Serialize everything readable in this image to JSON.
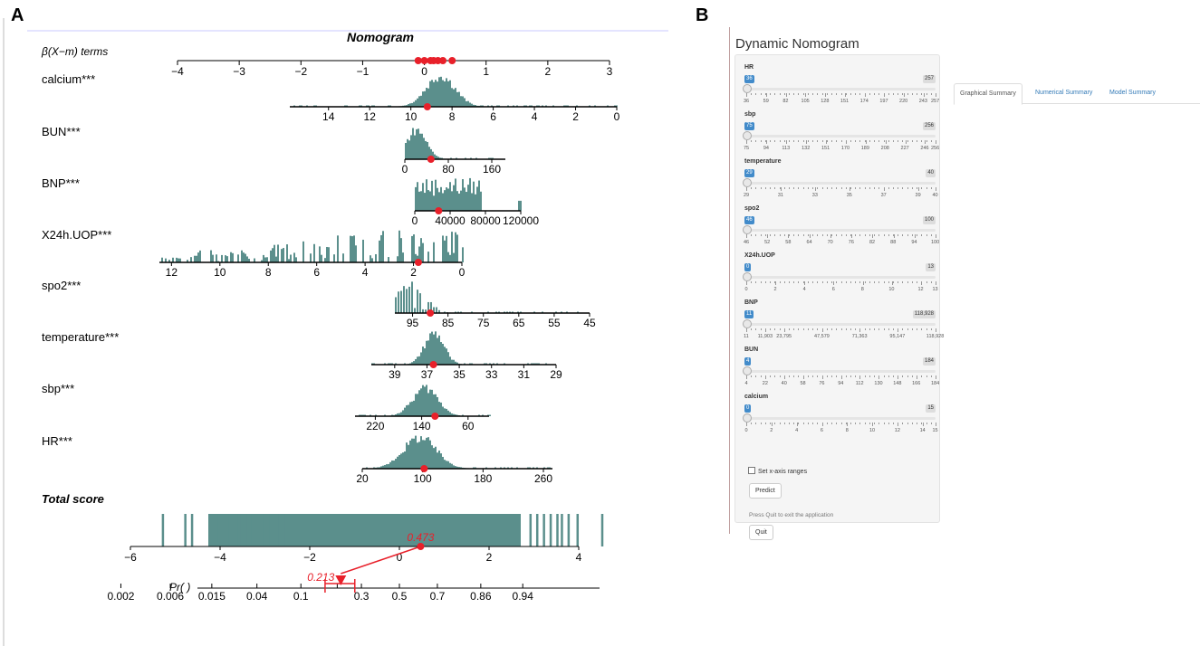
{
  "panel_labels": {
    "a": "A",
    "b": "B"
  },
  "chart_data": {
    "type": "nomogram",
    "title": "Nomogram",
    "beta_axis": {
      "label": "β(X−m) terms",
      "ticks": [
        "−4",
        "−3",
        "−2",
        "−1",
        "0",
        "1",
        "2",
        "3"
      ],
      "min": -4,
      "max": 3,
      "points": [
        -0.1,
        0.0,
        0.1,
        0.15,
        0.22,
        0.3,
        0.45
      ]
    },
    "variables": [
      {
        "name": "calcium***",
        "ticks": [
          "14",
          "12",
          "10",
          "8",
          "6",
          "4",
          "2",
          "0"
        ],
        "range": [
          15,
          0
        ],
        "point": 9.2,
        "hist_center": 8.6,
        "hist_spread": 0.7
      },
      {
        "name": "BUN***",
        "ticks": [
          "0",
          "80",
          "160"
        ],
        "range": [
          0,
          185
        ],
        "point": 48,
        "hist_center": 20,
        "hist_spread": 18
      },
      {
        "name": "BNP***",
        "ticks": [
          "0",
          "40000",
          "80000",
          "120000"
        ],
        "range": [
          0,
          120000
        ],
        "point": 27000,
        "hist_center": 20000,
        "hist_spread": 30000
      },
      {
        "name": "X24h.UOP***",
        "ticks": [
          "12",
          "10",
          "8",
          "6",
          "4",
          "2",
          "0"
        ],
        "range": [
          12.5,
          0
        ],
        "point": 1.8,
        "hist_center": 2.5,
        "hist_spread": 3.5
      },
      {
        "name": "spo2***",
        "ticks": [
          "95",
          "85",
          "75",
          "65",
          "55",
          "45"
        ],
        "range": [
          100,
          45
        ],
        "point": 90,
        "hist_center": 96,
        "hist_spread": 4
      },
      {
        "name": "temperature***",
        "ticks": [
          "39",
          "37",
          "35",
          "33",
          "31",
          "29"
        ],
        "range": [
          40,
          29
        ],
        "point": 36.6,
        "hist_center": 36.6,
        "hist_spread": 0.6
      },
      {
        "name": "sbp***",
        "ticks": [
          "220",
          "140",
          "60"
        ],
        "range": [
          255,
          55
        ],
        "point": 117,
        "hist_center": 135,
        "hist_spread": 22
      },
      {
        "name": "HR***",
        "ticks": [
          "20",
          "100",
          "180",
          "260"
        ],
        "range": [
          20,
          260
        ],
        "point": 102,
        "hist_center": 95,
        "hist_spread": 22
      }
    ],
    "total_score": {
      "label": "Total score",
      "ticks": [
        "−6",
        "−4",
        "−2",
        "0",
        "2",
        "4"
      ],
      "min": -6,
      "max": 4,
      "value": 0.473,
      "value_label": "0.473"
    },
    "probability": {
      "label": "Pr( )",
      "ticks": [
        "0.002",
        "0.006",
        "0.015",
        "0.04",
        "0.1",
        "0.3",
        "0.5",
        "0.7",
        "0.86",
        "0.94"
      ],
      "extra_tick": "0.2",
      "value": 0.213,
      "value_label": "0.213",
      "ci_low": 0.16,
      "ci_high": 0.27
    }
  },
  "app": {
    "title": "Dynamic Nomogram",
    "tabs": [
      "Graphical Summary",
      "Numerical Summary",
      "Model Summary"
    ],
    "sliders": [
      {
        "label": "HR",
        "min": "36",
        "max": "257",
        "ticks": [
          "36",
          "59",
          "82",
          "105",
          "128",
          "151",
          "174",
          "197",
          "220",
          "243",
          "257"
        ]
      },
      {
        "label": "sbp",
        "min": "75",
        "max": "256",
        "ticks": [
          "75",
          "94",
          "113",
          "132",
          "151",
          "170",
          "189",
          "208",
          "227",
          "246",
          "256"
        ]
      },
      {
        "label": "temperature",
        "min": "29",
        "max": "40",
        "ticks": [
          "29",
          "31",
          "33",
          "35",
          "37",
          "39",
          "40"
        ]
      },
      {
        "label": "spo2",
        "min": "46",
        "max": "100",
        "ticks": [
          "46",
          "52",
          "58",
          "64",
          "70",
          "76",
          "82",
          "88",
          "94",
          "100"
        ]
      },
      {
        "label": "X24h.UOP",
        "min": "0",
        "max": "13",
        "ticks": [
          "0",
          "2",
          "4",
          "6",
          "8",
          "10",
          "12",
          "13"
        ]
      },
      {
        "label": "BNP",
        "min": "11",
        "max": "118,928",
        "ticks": [
          "11",
          "11,903",
          "23,795",
          "47,579",
          "71,363",
          "95,147",
          "118,928"
        ]
      },
      {
        "label": "BUN",
        "min": "4",
        "max": "184",
        "ticks": [
          "4",
          "22",
          "40",
          "58",
          "76",
          "94",
          "112",
          "130",
          "148",
          "166",
          "184"
        ]
      },
      {
        "label": "calcium",
        "min": "0",
        "max": "15",
        "ticks": [
          "0",
          "2",
          "4",
          "6",
          "8",
          "10",
          "12",
          "14",
          "15"
        ]
      }
    ],
    "checkbox_label": "Set x-axis ranges",
    "predict_label": "Predict",
    "quit_note": "Press Quit to exit the application",
    "quit_label": "Quit"
  }
}
